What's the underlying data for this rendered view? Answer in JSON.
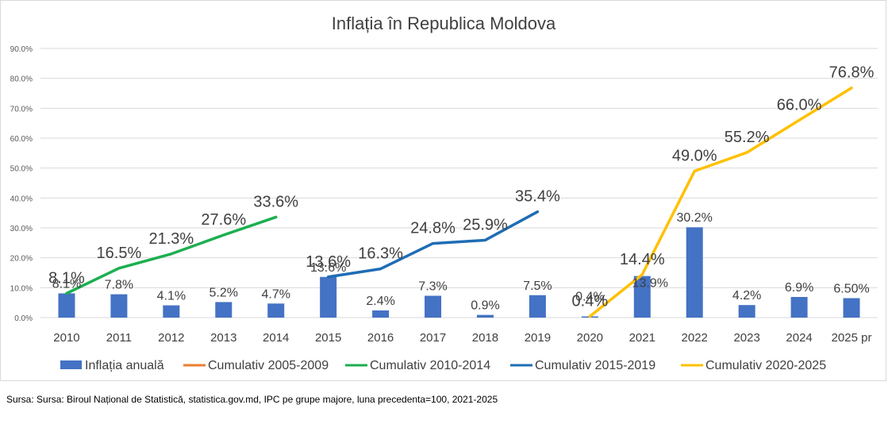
{
  "chart_data": {
    "type": "bar",
    "title": "Inflația în Republica Moldova",
    "categories": [
      "2010",
      "2011",
      "2012",
      "2013",
      "2014",
      "2015",
      "2016",
      "2017",
      "2018",
      "2019",
      "2020",
      "2021",
      "2022",
      "2023",
      "2024",
      "2025 pr"
    ],
    "y_ticks": [
      "0.0%",
      "10.0%",
      "20.0%",
      "30.0%",
      "40.0%",
      "50.0%",
      "60.0%",
      "70.0%",
      "80.0%",
      "90.0%"
    ],
    "ylim": [
      0,
      90
    ],
    "bar_series": {
      "name": "Inflația anuală",
      "color": "#4472C4",
      "values": [
        8.1,
        7.8,
        4.1,
        5.2,
        4.7,
        13.6,
        2.4,
        7.3,
        0.9,
        7.5,
        0.4,
        13.9,
        30.2,
        4.2,
        6.9,
        6.5
      ],
      "labels": [
        "8.1%",
        "7.8%",
        "4.1%",
        "5.2%",
        "4.7%",
        "13.6%",
        "2.4%",
        "7.3%",
        "0.9%",
        "7.5%",
        "0.4%",
        "13.9%",
        "30.2%",
        "4.2%",
        "6.9%",
        "6.50%"
      ]
    },
    "line_series": [
      {
        "name": "Cumulativ 2005-2009",
        "color": "#ED7D31",
        "start_index": 0,
        "values": [],
        "labels": []
      },
      {
        "name": "Cumulativ 2010-2014",
        "color": "#1CAF50",
        "start_index": 0,
        "values": [
          8.1,
          16.5,
          21.3,
          27.6,
          33.6
        ],
        "labels": [
          "8.1%",
          "16.5%",
          "21.3%",
          "27.6%",
          "33.6%"
        ]
      },
      {
        "name": "Cumulativ 2015-2019",
        "color": "#1F6DB5",
        "start_index": 5,
        "values": [
          13.6,
          16.3,
          24.8,
          25.9,
          35.4
        ],
        "labels": [
          "13.6%",
          "16.3%",
          "24.8%",
          "25.9%",
          "35.4%"
        ]
      },
      {
        "name": "Cumulativ 2020-2025",
        "color": "#FFC000",
        "start_index": 10,
        "values": [
          0.4,
          14.4,
          49.0,
          55.2,
          66.0,
          76.8
        ],
        "labels": [
          "0.4%",
          "14.4%",
          "49.0%",
          "55.2%",
          "66.0%",
          "76.8%"
        ]
      }
    ],
    "legend_position": "bottom",
    "grid": true
  },
  "source_note": "Sursa: Sursa: Biroul Național de Statistică, statistica.gov.md,  IPC pe grupe majore, luna precedenta=100, 2021-2025"
}
